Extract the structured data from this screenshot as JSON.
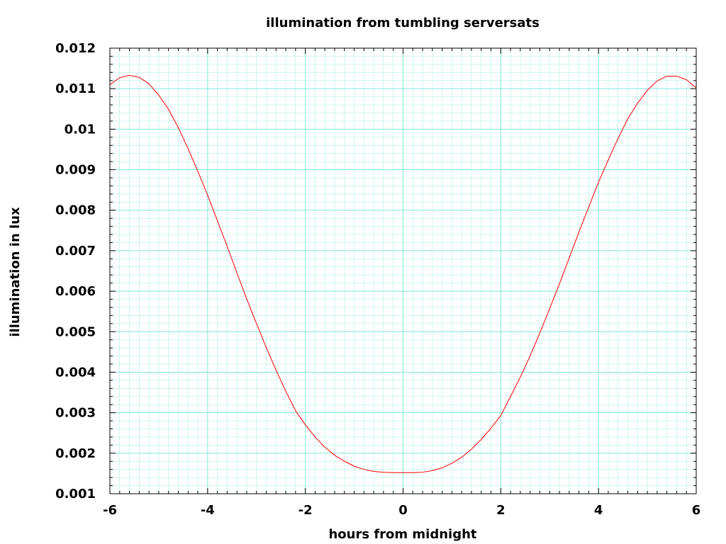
{
  "chart_data": {
    "type": "line",
    "title": "illumination from tumbling serversats",
    "xlabel": "hours from midnight",
    "ylabel": "illumination in lux",
    "xlim": [
      -6,
      6
    ],
    "ylim": [
      0.001,
      0.012
    ],
    "xticks": [
      -6,
      -4,
      -2,
      0,
      2,
      4,
      6
    ],
    "yticks": [
      0.001,
      0.002,
      0.003,
      0.004,
      0.005,
      0.006,
      0.007,
      0.008,
      0.009,
      0.01,
      0.011,
      0.012
    ],
    "ytick_labels": [
      "0.001",
      "0.002",
      "0.003",
      "0.004",
      "0.005",
      "0.006",
      "0.007",
      "0.008",
      "0.009",
      "0.01",
      "0.011",
      "0.012"
    ],
    "grid": true,
    "grid_color": "#7fe8d8",
    "series": [
      {
        "color": "#ff0000",
        "x": [
          -6.0,
          -5.8,
          -5.6,
          -5.4,
          -5.2,
          -5.0,
          -4.8,
          -4.6,
          -4.4,
          -4.2,
          -4.0,
          -3.8,
          -3.6,
          -3.4,
          -3.2,
          -3.0,
          -2.8,
          -2.6,
          -2.4,
          -2.2,
          -2.0,
          -1.8,
          -1.6,
          -1.4,
          -1.2,
          -1.0,
          -0.8,
          -0.6,
          -0.4,
          -0.2,
          0.0,
          0.2,
          0.4,
          0.6,
          0.8,
          1.0,
          1.2,
          1.4,
          1.6,
          1.8,
          2.0,
          2.2,
          2.4,
          2.6,
          2.8,
          3.0,
          3.2,
          3.4,
          3.6,
          3.8,
          4.0,
          4.2,
          4.4,
          4.6,
          4.8,
          5.0,
          5.2,
          5.4,
          5.6,
          5.8,
          6.0
        ],
        "y": [
          0.0111,
          0.01127,
          0.01133,
          0.01128,
          0.01112,
          0.01084,
          0.01049,
          0.01004,
          0.00952,
          0.00896,
          0.00837,
          0.00774,
          0.00711,
          0.00645,
          0.00581,
          0.0052,
          0.00461,
          0.00405,
          0.00353,
          0.00305,
          0.0027,
          0.0024,
          0.00215,
          0.00195,
          0.0018,
          0.00168,
          0.0016,
          0.00155,
          0.00153,
          0.00152,
          0.00152,
          0.00152,
          0.00153,
          0.00157,
          0.00164,
          0.00175,
          0.0019,
          0.0021,
          0.00234,
          0.00262,
          0.00293,
          0.0034,
          0.00388,
          0.0044,
          0.00497,
          0.00557,
          0.00618,
          0.00682,
          0.00746,
          0.00808,
          0.00869,
          0.00924,
          0.00977,
          0.01026,
          0.01064,
          0.01096,
          0.01119,
          0.01131,
          0.01131,
          0.01122,
          0.01102
        ]
      }
    ]
  }
}
